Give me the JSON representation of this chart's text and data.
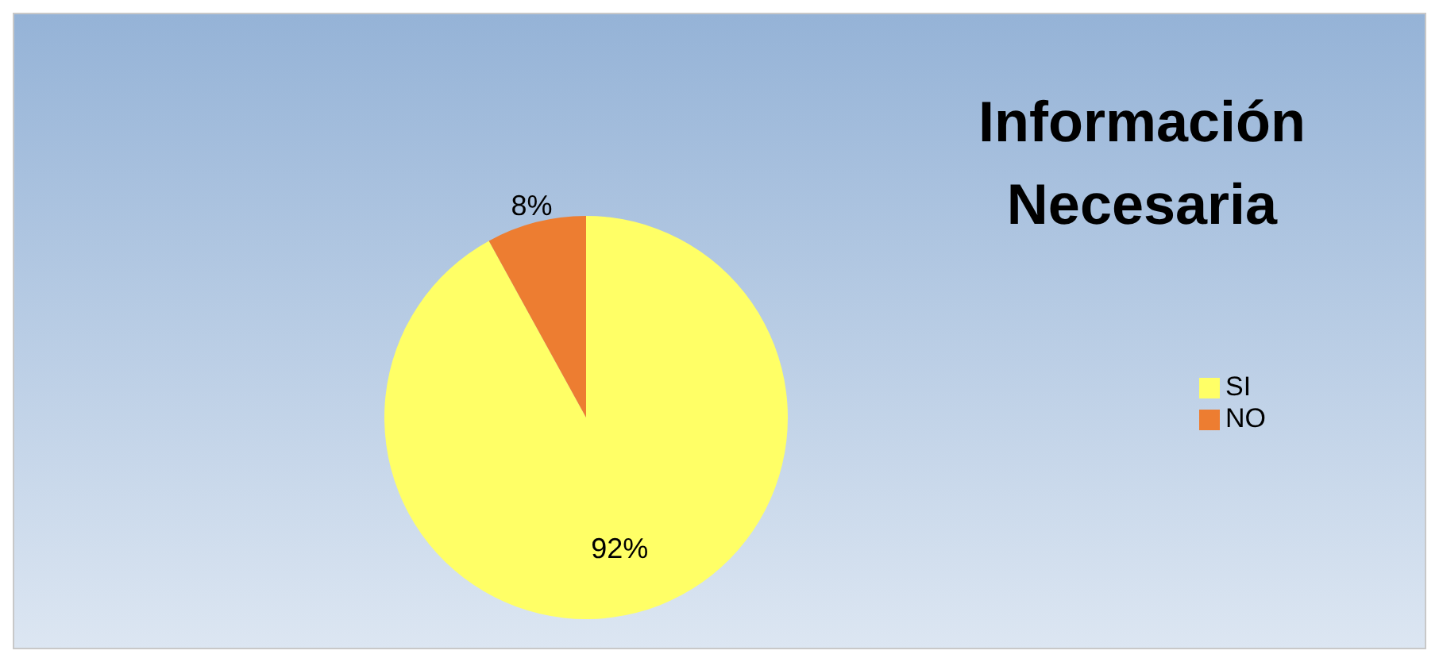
{
  "chart_data": {
    "type": "pie",
    "title": "Información Necesaria",
    "categories": [
      "SI",
      "NO"
    ],
    "values": [
      92,
      8
    ],
    "colors": [
      "#ffff66",
      "#ed7d31"
    ],
    "value_labels": [
      "92%",
      "8%"
    ],
    "legend": "right"
  }
}
